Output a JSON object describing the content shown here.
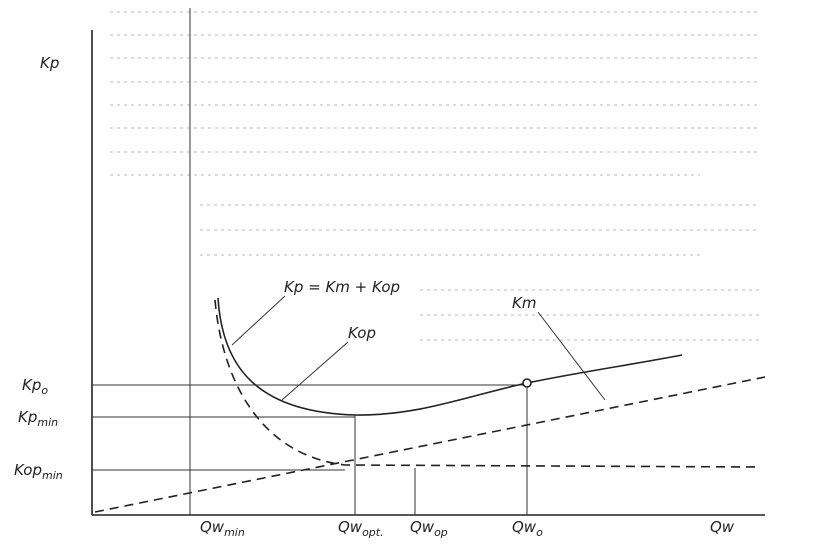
{
  "axes": {
    "y_label": "Kp",
    "x_label": "Qw"
  },
  "curves": {
    "total": "Kp = Km + Kop",
    "km": "Km",
    "kop": "Kop"
  },
  "y_marks": [
    {
      "main": "Kp",
      "sub": "o"
    },
    {
      "main": "Kp",
      "sub": "min"
    },
    {
      "main": "Kop",
      "sub": "min"
    }
  ],
  "x_marks": [
    {
      "main": "Qw",
      "sub": "min"
    },
    {
      "main": "Qw",
      "sub": "opt."
    },
    {
      "main": "Qw",
      "sub": "op"
    },
    {
      "main": "Qw",
      "sub": "o"
    }
  ]
}
